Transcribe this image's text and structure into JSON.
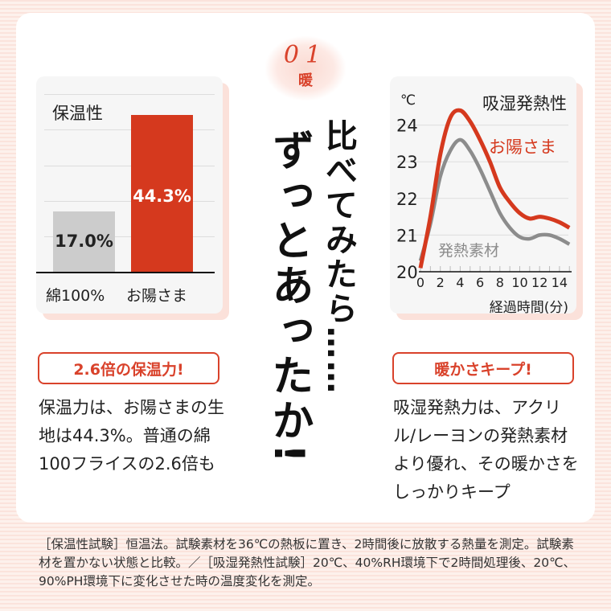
{
  "header": {
    "number": "01",
    "kanji": "暖"
  },
  "headline": {
    "line1": "比べてみたら……",
    "line2": "ずっとあったか!"
  },
  "left": {
    "chart_data": {
      "type": "bar",
      "title": "保温性",
      "categories": [
        "綿100%",
        "お陽さま"
      ],
      "values": [
        17.0,
        44.3
      ],
      "value_labels": [
        "17.0%",
        "44.3%"
      ],
      "colors": [
        "#cccccc",
        "#d5391e"
      ],
      "ylim": [
        0,
        50
      ]
    },
    "badge": "2.6倍の保温力!",
    "description": "保温力は、お陽さまの生地は44.3%。普通の綿100フライスの2.6倍も"
  },
  "right": {
    "chart_data": {
      "type": "line",
      "title": "吸湿発熱性",
      "ylabel": "℃",
      "xlabel": "経過時間(分)",
      "ylim": [
        20,
        24
      ],
      "xlim": [
        0,
        15
      ],
      "yticks": [
        "20",
        "21",
        "22",
        "23",
        "24"
      ],
      "xticks": [
        "0",
        "2",
        "4",
        "6",
        "8",
        "10",
        "12",
        "14"
      ],
      "x": [
        0,
        1,
        2,
        3,
        4,
        5,
        6,
        7,
        8,
        9,
        10,
        11,
        12,
        13,
        14,
        15
      ],
      "series": [
        {
          "name": "お陽さま",
          "color": "#d5391e",
          "values": [
            20.1,
            21.5,
            23.2,
            24.2,
            24.4,
            24.1,
            23.6,
            23.0,
            22.3,
            21.9,
            21.6,
            21.45,
            21.5,
            21.45,
            21.35,
            21.2
          ]
        },
        {
          "name": "発熱素材",
          "color": "#8c8c8c",
          "values": [
            20.3,
            21.3,
            22.6,
            23.3,
            23.6,
            23.3,
            22.8,
            22.2,
            21.6,
            21.2,
            20.95,
            20.9,
            21.0,
            21.0,
            20.9,
            20.75
          ]
        }
      ]
    },
    "badge": "暖かさキープ!",
    "description": "吸湿発熱力は、アクリル/レーヨンの発熱素材より優れ、その暖かさをしっかりキープ"
  },
  "footnote": "［保温性試験］恒温法。試験素材を36℃の熱板に置き、2時間後に放散する熱量を測定。試験素材を置かない状態と比較。／［吸湿発熱性試験］20℃、40%RH環境下で2時間処理後、20℃、90%PH環境下に変化させた時の温度変化を測定。"
}
